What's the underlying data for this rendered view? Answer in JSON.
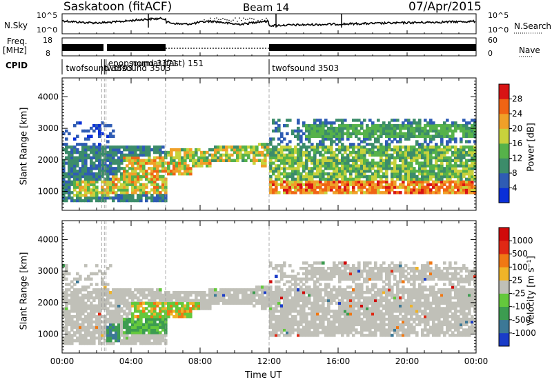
{
  "header": {
    "radar": "Saskatoon (fitACF)",
    "beam": "Beam 14",
    "date": "07/Apr/2015"
  },
  "left_labels": {
    "nsky": "N.Sky",
    "freq_top": "Freq.",
    "freq_unit": "[MHz]",
    "cpid": "CPID"
  },
  "right_labels": {
    "nsearch": "N.Search",
    "nave": "Nave"
  },
  "noise_panel": {
    "ytick_top": "10^5",
    "ytick_bottom": "10^0",
    "rtick_top": "10^5",
    "rtick_bottom": "10^0"
  },
  "freq_panel": {
    "ytick_top": "18",
    "ytick_bottom": "8",
    "rtick_top": "60",
    "rtick_bottom": "0"
  },
  "cpid_labels": [
    {
      "text": "twofsound 3503",
      "t": 0.1
    },
    {
      "text": "twofsound 3503",
      "t": 2.3
    },
    {
      "text": "epopsound 3371",
      "t": 2.55
    },
    {
      "text": "normal (fast) 151",
      "t": 3.9
    },
    {
      "text": "twofsound 3503",
      "t": 12.05
    }
  ],
  "cpid_changes": [
    2.3,
    2.45,
    2.55,
    6.0,
    12.0
  ],
  "chart_data": [
    {
      "type": "heatmap",
      "name": "power",
      "ylabel": "Slant Range [km]",
      "xlabel": "",
      "xlim": [
        0,
        24
      ],
      "ylim": [
        400,
        4600
      ],
      "yticks": [
        1000,
        2000,
        3000,
        4000
      ],
      "colorbar": {
        "label": "Power [dB]",
        "ticks": [
          "4",
          "8",
          "12",
          "16",
          "20",
          "24",
          "28"
        ],
        "colors": [
          "#0a2fd8",
          "#2f5cb4",
          "#3c8c6a",
          "#56b24a",
          "#c8d23c",
          "#f0a028",
          "#f06414",
          "#d81414"
        ]
      }
    },
    {
      "type": "heatmap",
      "name": "velocity",
      "ylabel": "Slant Range [km]",
      "xlabel": "Time UT",
      "xlim": [
        0,
        24
      ],
      "ylim": [
        400,
        4600
      ],
      "yticks": [
        1000,
        2000,
        3000,
        4000
      ],
      "xticks": [
        "00:00",
        "04:00",
        "08:00",
        "12:00",
        "16:00",
        "20:00",
        "00:00"
      ],
      "colorbar": {
        "label": "Velocity [m s⁻¹]",
        "ticks": [
          "1000",
          "500",
          "100",
          "25",
          "-25",
          "-100",
          "-500",
          "-1000"
        ],
        "colors": [
          "#1a3cc8",
          "#3c7896",
          "#3c9c50",
          "#64c83c",
          "#c0c0b8",
          "#f0b428",
          "#f07814",
          "#e02814",
          "#d00a0a"
        ]
      }
    }
  ]
}
